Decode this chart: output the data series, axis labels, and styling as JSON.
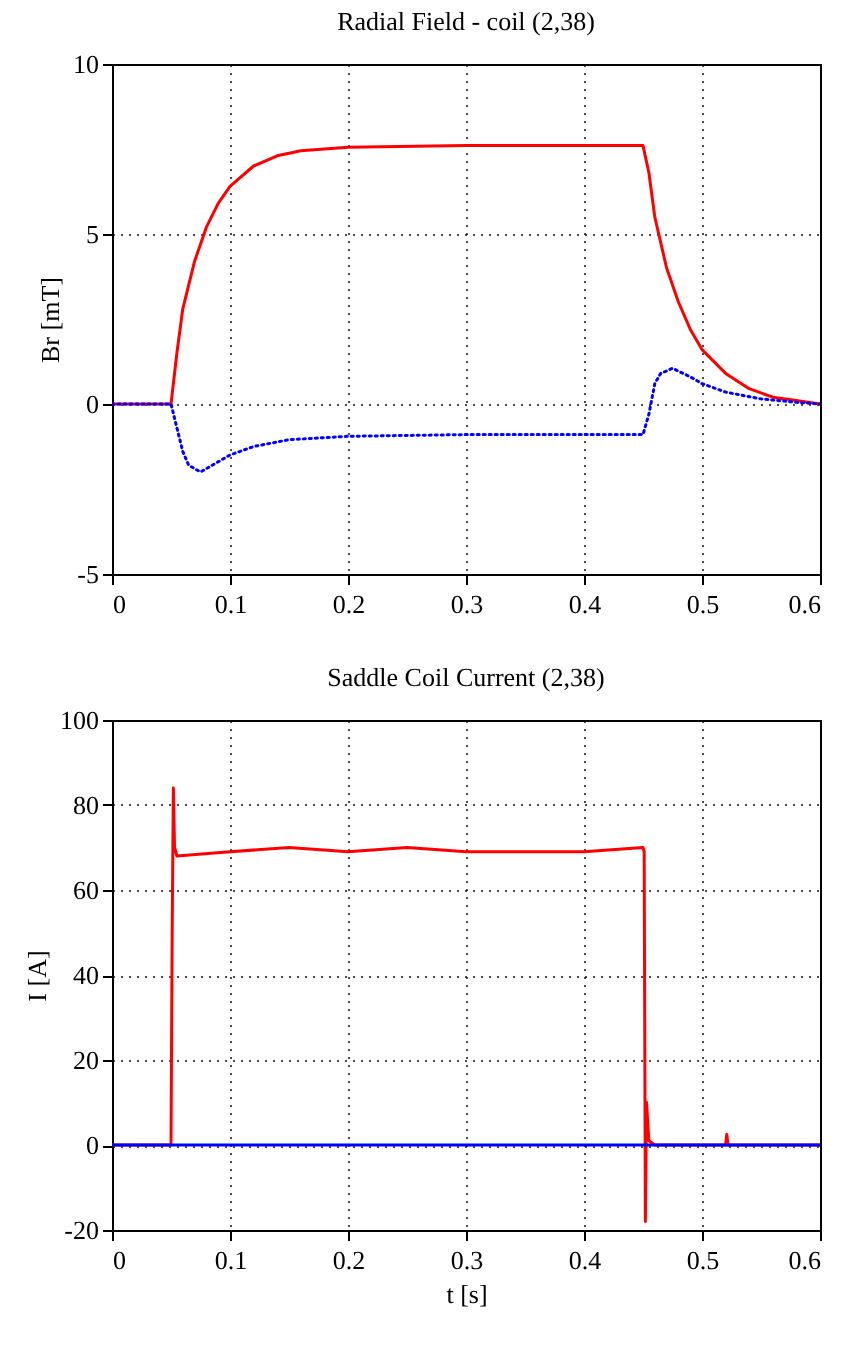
{
  "chart_data": [
    {
      "type": "line",
      "title": "Radial Field - coil (2,38)",
      "ylabel": "Br [mT]",
      "xlim": [
        0,
        0.6
      ],
      "xticks": [
        0,
        0.1,
        0.2,
        0.3,
        0.4,
        0.5,
        0.6
      ],
      "ylim": [
        -5,
        10
      ],
      "yticks": [
        -5,
        0,
        5,
        10
      ],
      "grid": true,
      "legend": false,
      "series": [
        {
          "color": "#ff0000",
          "line_style": "solid",
          "x": [
            0,
            0.05,
            0.055,
            0.06,
            0.07,
            0.08,
            0.09,
            0.1,
            0.12,
            0.14,
            0.16,
            0.2,
            0.3,
            0.45,
            0.455,
            0.46,
            0.47,
            0.48,
            0.49,
            0.5,
            0.52,
            0.54,
            0.56,
            0.58,
            0.6
          ],
          "values": [
            0,
            0,
            1.5,
            2.8,
            4.2,
            5.2,
            5.9,
            6.4,
            7.0,
            7.3,
            7.45,
            7.55,
            7.6,
            7.6,
            6.8,
            5.5,
            4.0,
            3.0,
            2.2,
            1.6,
            0.9,
            0.45,
            0.2,
            0.1,
            0
          ]
        },
        {
          "color": "#0000ff",
          "line_style": "dotted",
          "x": [
            0,
            0.05,
            0.055,
            0.06,
            0.065,
            0.075,
            0.09,
            0.1,
            0.12,
            0.15,
            0.2,
            0.3,
            0.45,
            0.455,
            0.46,
            0.465,
            0.475,
            0.49,
            0.5,
            0.52,
            0.55,
            0.58,
            0.6
          ],
          "values": [
            0,
            0,
            -0.7,
            -1.4,
            -1.8,
            -2.0,
            -1.7,
            -1.5,
            -1.25,
            -1.05,
            -0.95,
            -0.9,
            -0.9,
            -0.3,
            0.6,
            0.9,
            1.05,
            0.8,
            0.6,
            0.35,
            0.15,
            0.05,
            0
          ]
        }
      ]
    },
    {
      "type": "line",
      "title": "Saddle Coil Current (2,38)",
      "xlabel": "t [s]",
      "ylabel": "I [A]",
      "xlim": [
        0,
        0.6
      ],
      "xticks": [
        0,
        0.1,
        0.2,
        0.3,
        0.4,
        0.5,
        0.6
      ],
      "ylim": [
        -20,
        100
      ],
      "yticks": [
        -20,
        0,
        20,
        40,
        60,
        80,
        100
      ],
      "grid": true,
      "legend": false,
      "series": [
        {
          "color": "#ff0000",
          "line_style": "solid",
          "x": [
            0,
            0.05,
            0.051,
            0.052,
            0.053,
            0.055,
            0.1,
            0.15,
            0.2,
            0.25,
            0.3,
            0.35,
            0.4,
            0.45,
            0.451,
            0.452,
            0.453,
            0.455,
            0.46,
            0.52,
            0.521,
            0.522,
            0.6
          ],
          "values": [
            0,
            0,
            50,
            84,
            70,
            68,
            69,
            70,
            69,
            70,
            69,
            69,
            69,
            70,
            69,
            -18,
            10,
            1,
            0,
            0,
            2.5,
            0,
            0
          ]
        },
        {
          "color": "#0000ff",
          "line_style": "solid",
          "x": [
            0,
            0.1,
            0.2,
            0.3,
            0.4,
            0.5,
            0.6
          ],
          "values": [
            0,
            0,
            0,
            0,
            0,
            0,
            0
          ]
        }
      ]
    }
  ]
}
